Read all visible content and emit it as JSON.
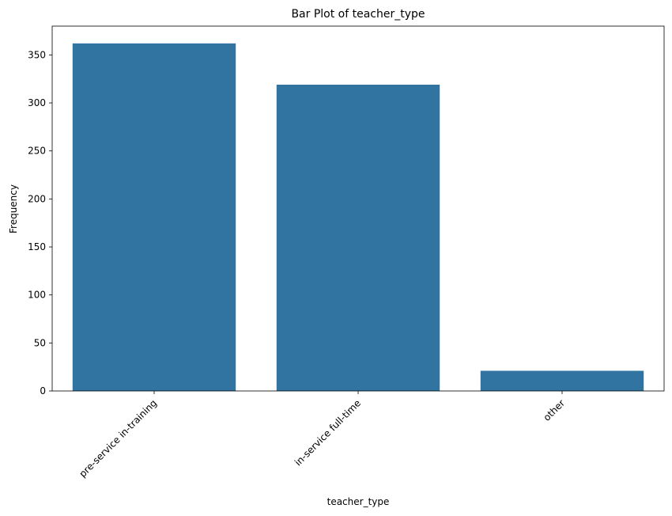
{
  "chart_data": {
    "type": "bar",
    "title": "Bar Plot of teacher_type",
    "xlabel": "teacher_type",
    "ylabel": "Frequency",
    "categories": [
      "pre-service in-training",
      "in-service full-time",
      "other"
    ],
    "values": [
      362,
      319,
      21
    ],
    "ylim": [
      0,
      380
    ],
    "yticks": [
      0,
      50,
      100,
      150,
      200,
      250,
      300,
      350
    ],
    "bar_color": "#3274a1",
    "grid": false,
    "legend": "none"
  }
}
